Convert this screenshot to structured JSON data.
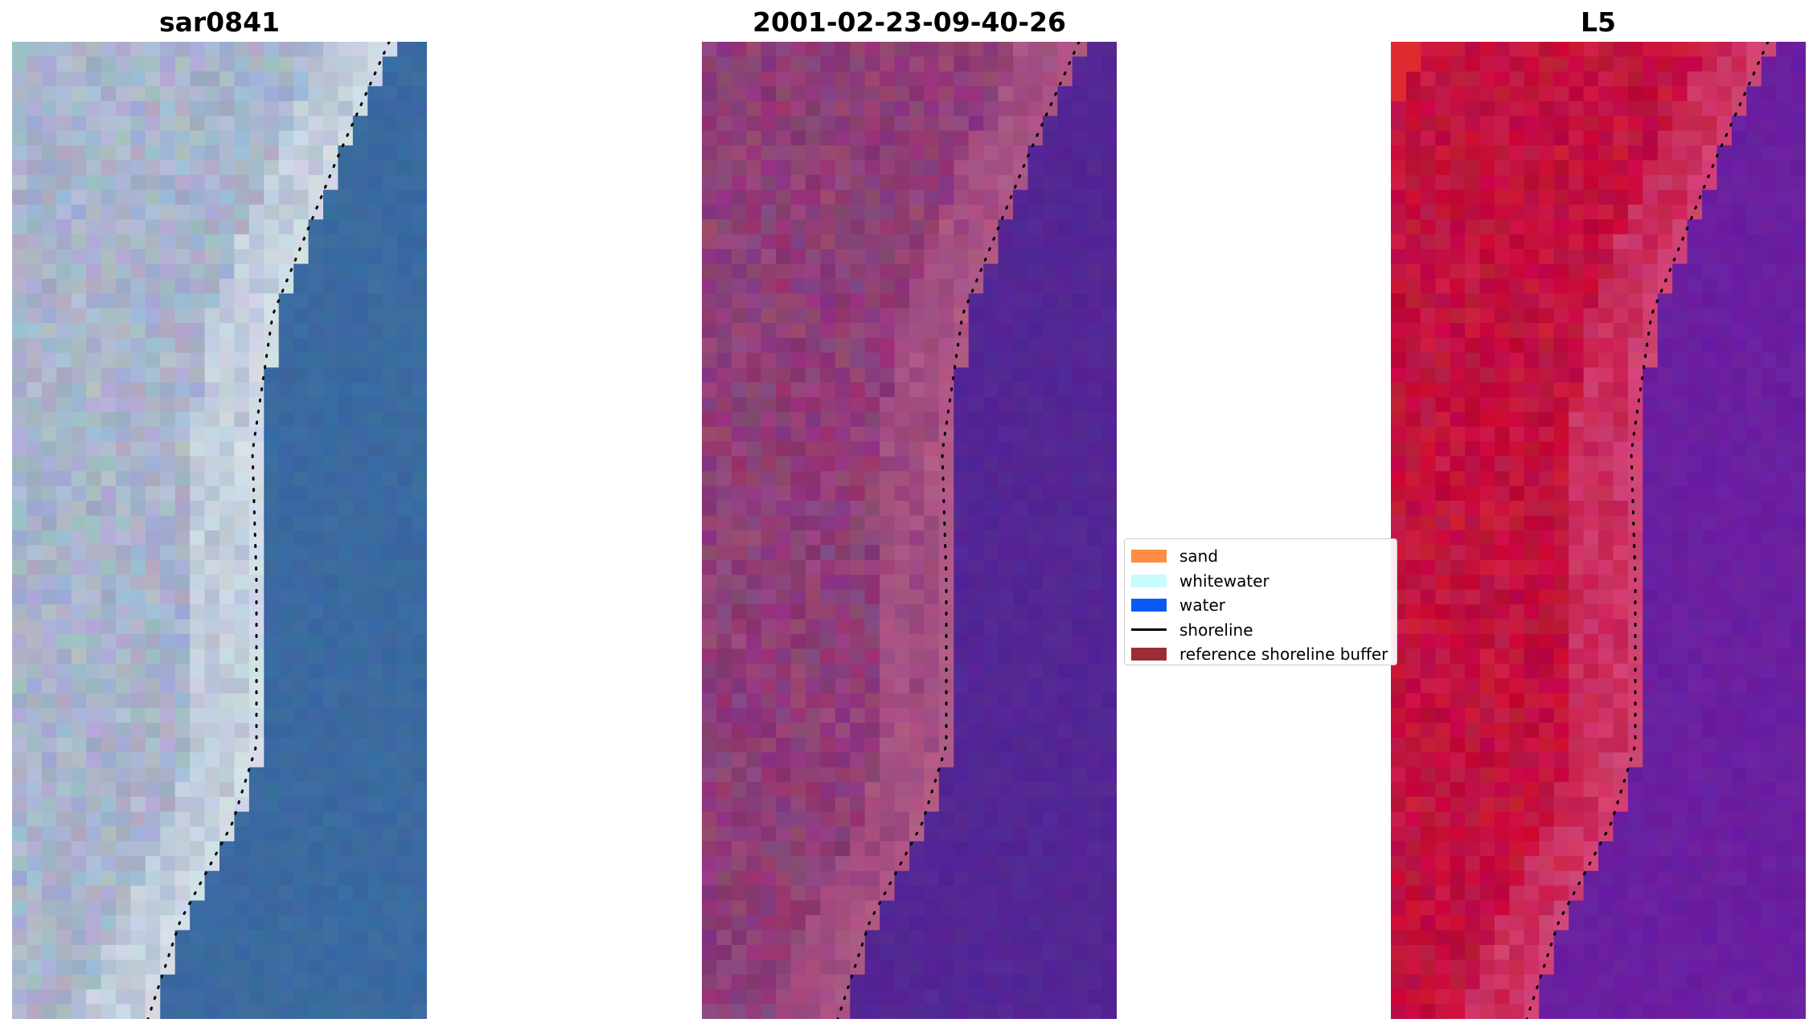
{
  "titles": {
    "left": "sar0841",
    "middle": "2001-02-23-09-40-26",
    "right": "L5"
  },
  "legend": {
    "items": [
      {
        "label": "sand",
        "color": "#FF8C42",
        "kind": "patch"
      },
      {
        "label": "whitewater",
        "color": "#C8FBFB",
        "kind": "patch"
      },
      {
        "label": "water",
        "color": "#0A5AF5",
        "kind": "patch"
      },
      {
        "label": "shoreline",
        "color": "#000000",
        "kind": "line"
      },
      {
        "label": "reference shoreline buffer",
        "color": "#9B2D37",
        "kind": "patch"
      }
    ]
  },
  "colors": {
    "rgb_water": "#3A6AA0",
    "rgb_land": "#A8B4CC",
    "rgb_whitewater": "#E8F2F4",
    "fc_water": "#532694",
    "fc_land": "#8F3E78",
    "nir_water": "#6A1FA0",
    "nir_land": "#C2123E",
    "nir_edge": "#E02A30"
  }
}
